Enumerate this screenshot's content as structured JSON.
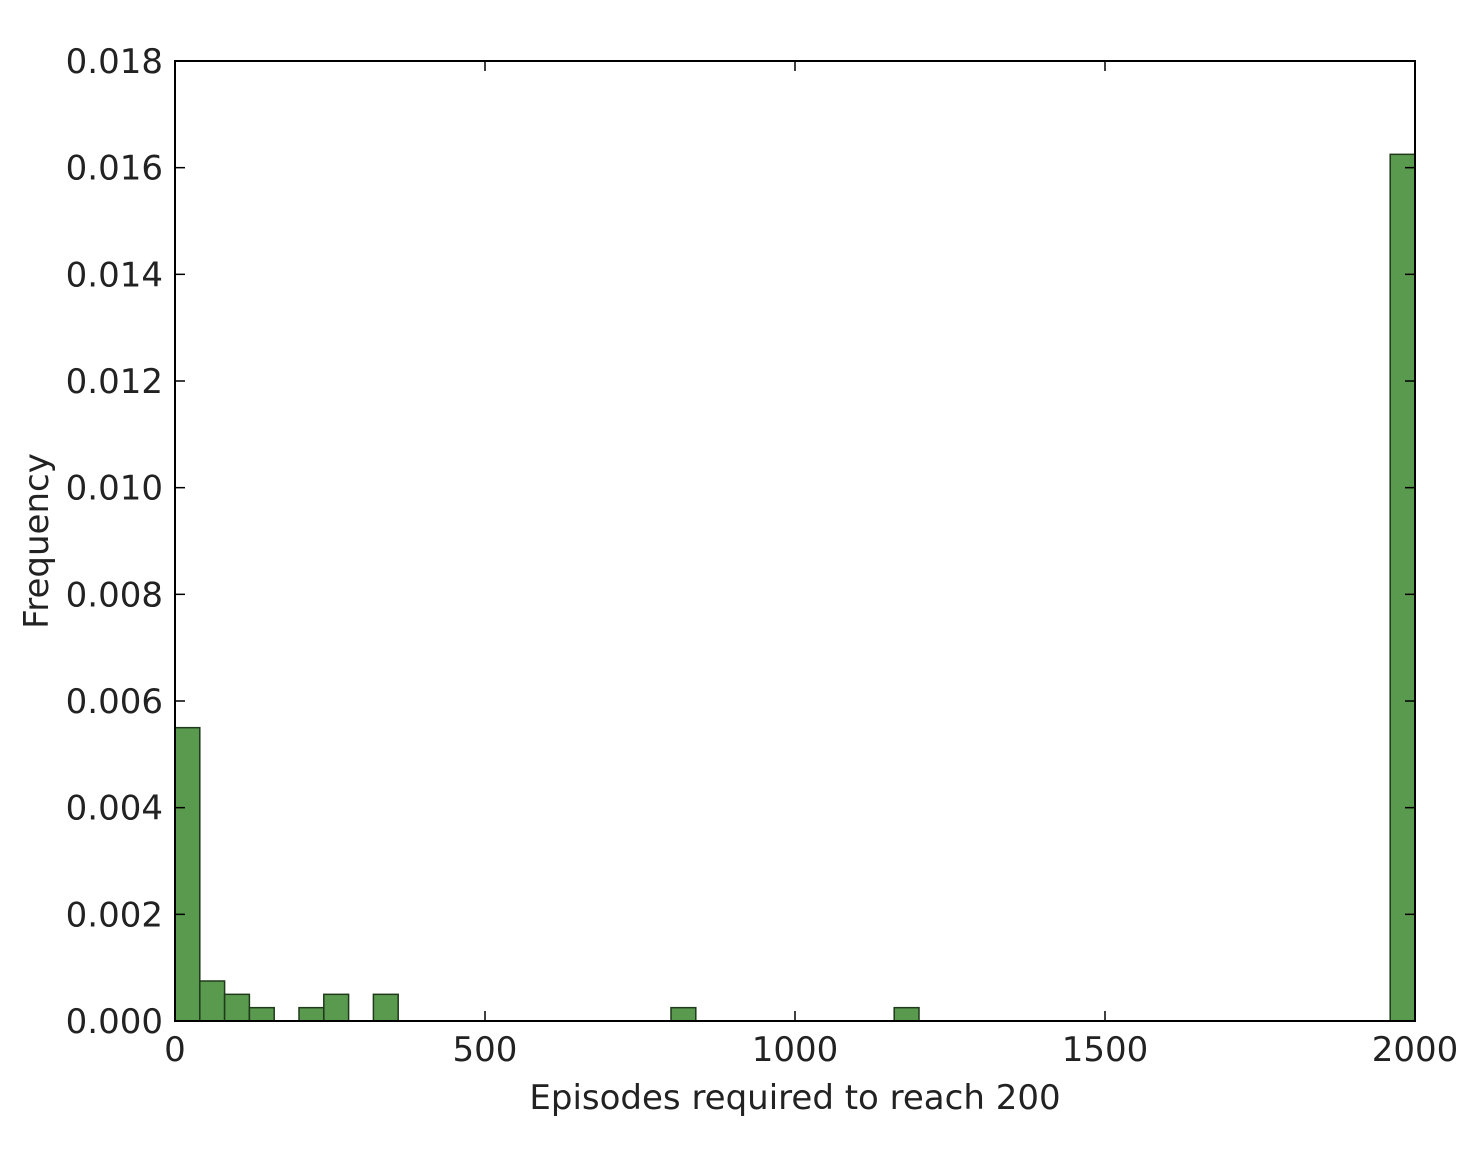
{
  "chart_data": {
    "type": "bar",
    "subtype": "histogram",
    "title": "",
    "xlabel": "Episodes required to reach 200",
    "ylabel": "Frequency",
    "xlim": [
      0,
      2000
    ],
    "ylim": [
      0,
      0.018
    ],
    "xticks": [
      0,
      500,
      1000,
      1500,
      2000
    ],
    "xtick_labels": [
      "0",
      "500",
      "1000",
      "1500",
      "2000"
    ],
    "yticks": [
      0,
      0.002,
      0.004,
      0.006,
      0.008,
      0.01,
      0.012,
      0.014,
      0.016,
      0.018
    ],
    "ytick_labels": [
      "0.000",
      "0.002",
      "0.004",
      "0.006",
      "0.008",
      "0.010",
      "0.012",
      "0.014",
      "0.016",
      "0.018"
    ],
    "grid": false,
    "bar_color": "#5a9a4f",
    "bar_edge_color": "#1e3a1a",
    "bins": [
      {
        "x0": 0,
        "x1": 40,
        "value": 0.0055
      },
      {
        "x0": 40,
        "x1": 80,
        "value": 0.00075
      },
      {
        "x0": 80,
        "x1": 120,
        "value": 0.0005
      },
      {
        "x0": 120,
        "x1": 160,
        "value": 0.00025
      },
      {
        "x0": 200,
        "x1": 240,
        "value": 0.00025
      },
      {
        "x0": 240,
        "x1": 280,
        "value": 0.0005
      },
      {
        "x0": 320,
        "x1": 360,
        "value": 0.0005
      },
      {
        "x0": 800,
        "x1": 840,
        "value": 0.00025
      },
      {
        "x0": 1160,
        "x1": 1200,
        "value": 0.00025
      },
      {
        "x0": 1960,
        "x1": 2000,
        "value": 0.01625
      }
    ]
  }
}
